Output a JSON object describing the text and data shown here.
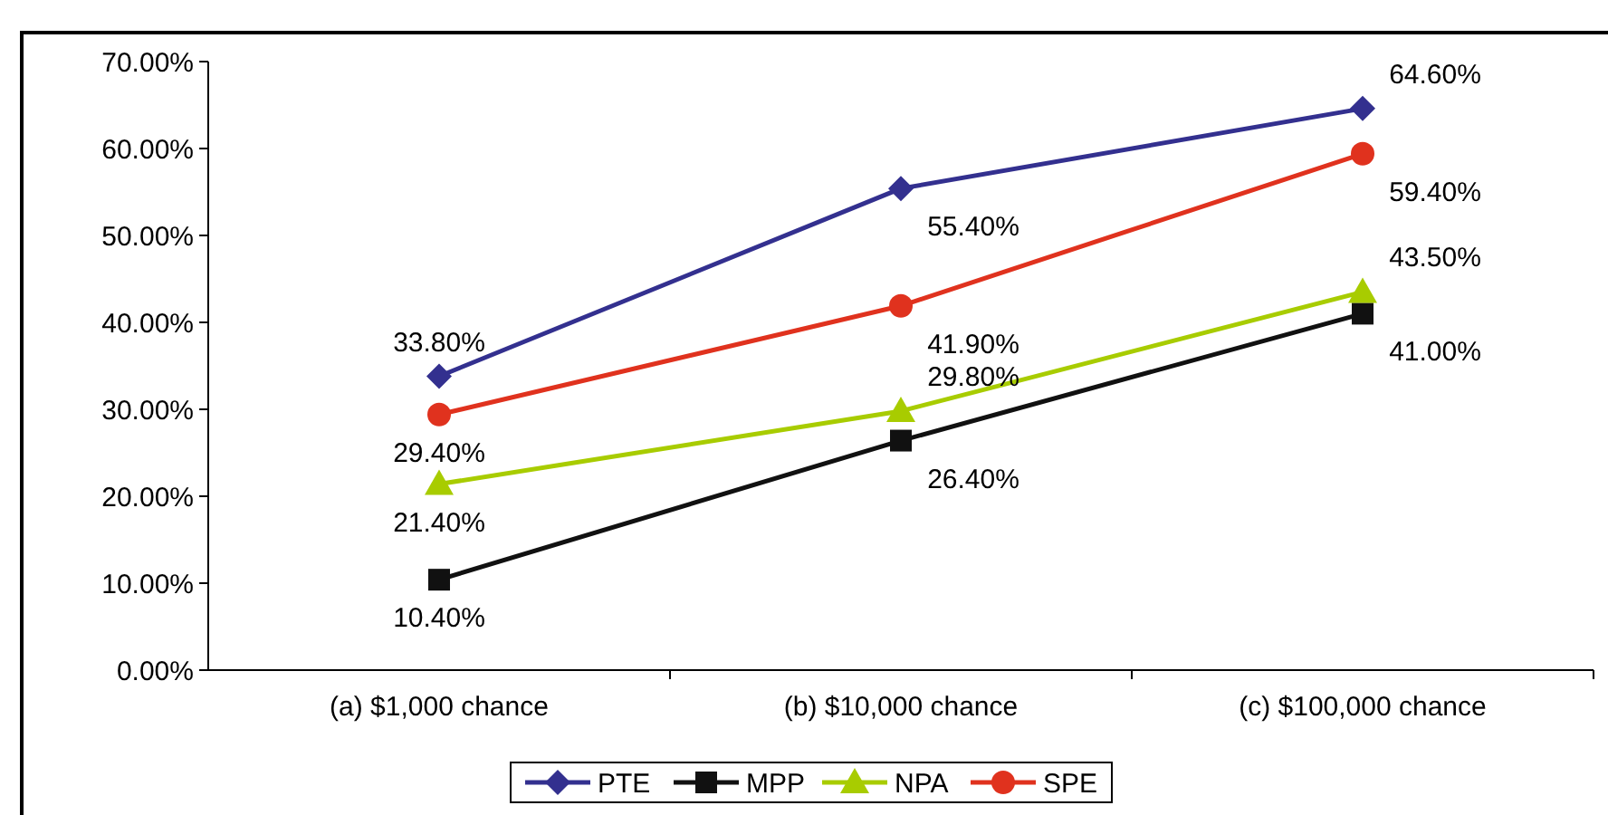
{
  "chart_data": {
    "type": "line",
    "categories": [
      "(a) $1,000 chance",
      "(b) $10,000 chance",
      "(c) $100,000 chance"
    ],
    "series": [
      {
        "name": "PTE",
        "color": "#33308f",
        "marker": "diamond",
        "values": [
          33.8,
          55.4,
          64.6
        ],
        "value_labels": [
          "33.80%",
          "55.40%",
          "64.60%"
        ]
      },
      {
        "name": "MPP",
        "color": "#111111",
        "marker": "square",
        "values": [
          10.4,
          26.4,
          41.0
        ],
        "value_labels": [
          "10.40%",
          "26.40%",
          "41.00%"
        ]
      },
      {
        "name": "NPA",
        "color": "#a8cc00",
        "marker": "triangle",
        "values": [
          21.4,
          29.8,
          43.5
        ],
        "value_labels": [
          "21.40%",
          "29.80%",
          "43.50%"
        ]
      },
      {
        "name": "SPE",
        "color": "#e0321e",
        "marker": "circle",
        "values": [
          29.4,
          41.9,
          59.4
        ],
        "value_labels": [
          "29.40%",
          "41.90%",
          "59.40%"
        ]
      }
    ],
    "ylim": [
      0,
      70
    ],
    "yticks": [
      {
        "value": 0,
        "label": "0.00%"
      },
      {
        "value": 10,
        "label": "10.00%"
      },
      {
        "value": 20,
        "label": "20.00%"
      },
      {
        "value": 30,
        "label": "30.00%"
      },
      {
        "value": 40,
        "label": "40.00%"
      },
      {
        "value": 50,
        "label": "50.00%"
      },
      {
        "value": 60,
        "label": "60.00%"
      },
      {
        "value": 70,
        "label": "70.00%"
      }
    ],
    "legend": "bottom",
    "grid": false
  }
}
